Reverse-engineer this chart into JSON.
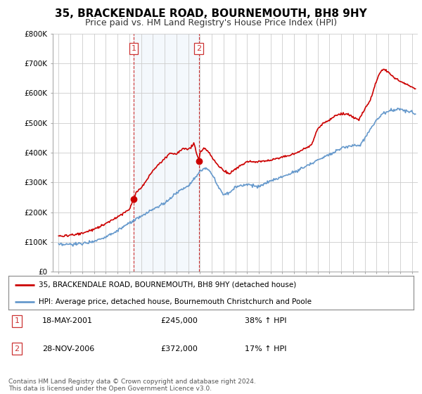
{
  "title": "35, BRACKENDALE ROAD, BOURNEMOUTH, BH8 9HY",
  "subtitle": "Price paid vs. HM Land Registry's House Price Index (HPI)",
  "legend_line1": "35, BRACKENDALE ROAD, BOURNEMOUTH, BH8 9HY (detached house)",
  "legend_line2": "HPI: Average price, detached house, Bournemouth Christchurch and Poole",
  "footer": "Contains HM Land Registry data © Crown copyright and database right 2024.\nThis data is licensed under the Open Government Licence v3.0.",
  "sale1_label": "1",
  "sale1_date": "18-MAY-2001",
  "sale1_price": "£245,000",
  "sale1_hpi": "38% ↑ HPI",
  "sale2_label": "2",
  "sale2_date": "28-NOV-2006",
  "sale2_price": "£372,000",
  "sale2_hpi": "17% ↑ HPI",
  "sale1_x": 2001.37,
  "sale2_x": 2006.91,
  "sale1_y": 245000,
  "sale2_y": 372000,
  "vline1_x": 2001.37,
  "vline2_x": 2006.91,
  "red_color": "#cc0000",
  "blue_color": "#6699cc",
  "vline_color": "#cc3333",
  "background_color": "#ffffff",
  "grid_color": "#cccccc",
  "ylim": [
    0,
    800000
  ],
  "xlim": [
    1994.5,
    2025.5
  ],
  "title_fontsize": 11,
  "subtitle_fontsize": 9,
  "tick_fontsize": 7.5,
  "label_fontsize": 8
}
